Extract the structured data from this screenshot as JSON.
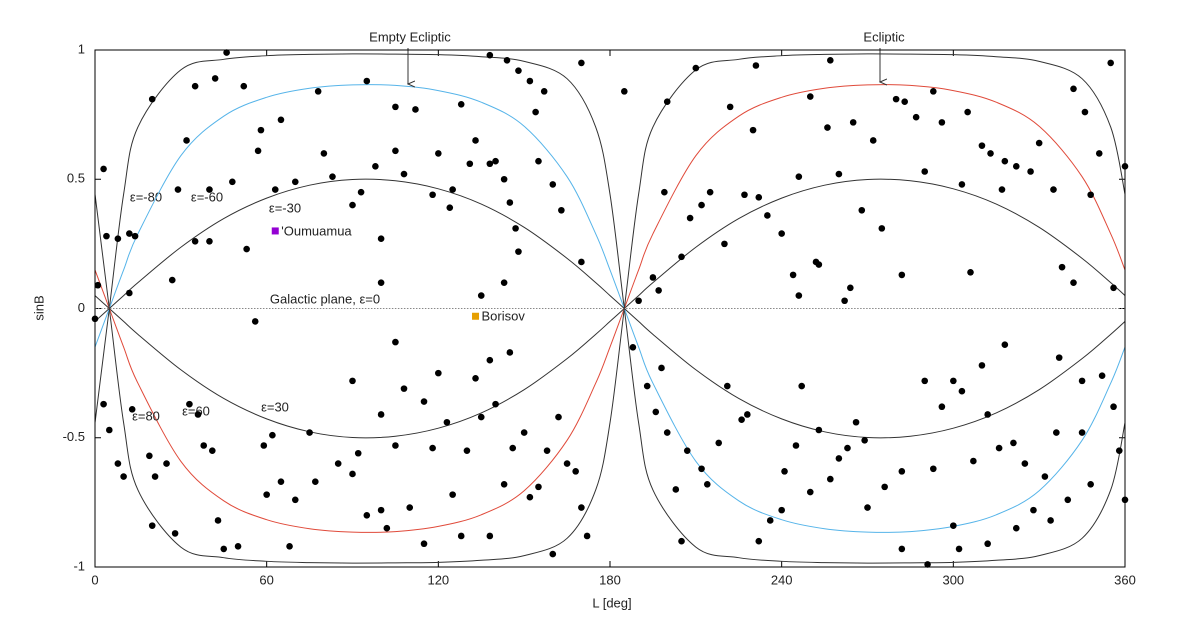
{
  "chart_data": {
    "type": "scatter",
    "xlabel": "L [deg]",
    "ylabel": "sinB",
    "xlim": [
      0,
      360
    ],
    "xticks": [
      0,
      60,
      120,
      180,
      240,
      300,
      360
    ],
    "ylim": [
      -1,
      1
    ],
    "yticks": [
      -1,
      -0.5,
      0,
      0.5,
      1
    ],
    "annotations": [
      "Empty Ecliptic",
      "Ecliptic"
    ],
    "series": [
      {
        "name": "ε=-80",
        "color": "#333333",
        "style": "line",
        "x": [
          0,
          5,
          10,
          15,
          30,
          45,
          60,
          75,
          90,
          105,
          120,
          135,
          150,
          165,
          175,
          180,
          185,
          190,
          195,
          210,
          225,
          240,
          255,
          270,
          285,
          300,
          315,
          330,
          345,
          355,
          360
        ],
        "values": [
          -0.442,
          0,
          0.442,
          0.702,
          0.923,
          0.964,
          0.978,
          0.983,
          0.985,
          0.984,
          0.982,
          0.974,
          0.956,
          0.889,
          0.702,
          0.442,
          0,
          -0.442,
          -0.702,
          -0.923,
          -0.964,
          -0.978,
          -0.983,
          -0.985,
          -0.984,
          -0.982,
          -0.974,
          -0.956,
          -0.889,
          -0.702,
          -0.442
        ]
      },
      {
        "name": "ε=-60",
        "color": "#56b4e9",
        "style": "line",
        "x": [
          0,
          5,
          10,
          15,
          30,
          45,
          60,
          75,
          90,
          105,
          120,
          135,
          150,
          165,
          175,
          180,
          185,
          190,
          195,
          210,
          225,
          240,
          255,
          270,
          285,
          300,
          315,
          330,
          345,
          355,
          360
        ],
        "values": [
          -0.149,
          0,
          0.149,
          0.289,
          0.591,
          0.744,
          0.817,
          0.852,
          0.865,
          0.863,
          0.843,
          0.798,
          0.705,
          0.51,
          0.289,
          0.149,
          0,
          -0.149,
          -0.289,
          -0.591,
          -0.744,
          -0.817,
          -0.852,
          -0.865,
          -0.863,
          -0.843,
          -0.798,
          -0.705,
          -0.51,
          -0.289,
          -0.149
        ]
      },
      {
        "name": "ε=-30",
        "color": "#333333",
        "style": "line",
        "x": [
          0,
          5,
          10,
          15,
          30,
          45,
          60,
          75,
          90,
          105,
          120,
          135,
          150,
          165,
          175,
          180,
          185,
          190,
          195,
          210,
          225,
          240,
          255,
          270,
          285,
          300,
          315,
          330,
          345,
          355,
          360
        ],
        "values": [
          -0.05,
          0,
          0.05,
          0.1,
          0.237,
          0.348,
          0.427,
          0.477,
          0.499,
          0.494,
          0.463,
          0.404,
          0.314,
          0.194,
          0.1,
          0.05,
          0,
          -0.05,
          -0.1,
          -0.237,
          -0.348,
          -0.427,
          -0.477,
          -0.499,
          -0.494,
          -0.463,
          -0.404,
          -0.314,
          -0.194,
          -0.1,
          -0.05
        ]
      },
      {
        "name": "Galactic plane, ε=0",
        "color": "#888888",
        "style": "dotted",
        "x": [
          0,
          360
        ],
        "values": [
          0,
          0
        ]
      },
      {
        "name": "ε=30",
        "color": "#333333",
        "style": "line",
        "x": [
          0,
          5,
          10,
          15,
          30,
          45,
          60,
          75,
          90,
          105,
          120,
          135,
          150,
          165,
          175,
          180,
          185,
          190,
          195,
          210,
          225,
          240,
          255,
          270,
          285,
          300,
          315,
          330,
          345,
          355,
          360
        ],
        "values": [
          0.05,
          0,
          -0.05,
          -0.1,
          -0.237,
          -0.348,
          -0.427,
          -0.477,
          -0.499,
          -0.494,
          -0.463,
          -0.404,
          -0.314,
          -0.194,
          -0.1,
          -0.05,
          0,
          0.05,
          0.1,
          0.237,
          0.348,
          0.427,
          0.477,
          0.499,
          0.494,
          0.463,
          0.404,
          0.314,
          0.194,
          0.1,
          0.05
        ]
      },
      {
        "name": "ε=60",
        "color": "#e04a3a",
        "style": "line",
        "x": [
          0,
          5,
          10,
          15,
          30,
          45,
          60,
          75,
          90,
          105,
          120,
          135,
          150,
          165,
          175,
          180,
          185,
          190,
          195,
          210,
          225,
          240,
          255,
          270,
          285,
          300,
          315,
          330,
          345,
          355,
          360
        ],
        "values": [
          0.149,
          0,
          -0.149,
          -0.289,
          -0.591,
          -0.744,
          -0.817,
          -0.852,
          -0.865,
          -0.863,
          -0.843,
          -0.798,
          -0.705,
          -0.51,
          -0.289,
          -0.149,
          0,
          0.149,
          0.289,
          0.591,
          0.744,
          0.817,
          0.852,
          0.865,
          0.863,
          0.843,
          0.798,
          0.705,
          0.51,
          0.289,
          0.149
        ]
      },
      {
        "name": "ε=80",
        "color": "#333333",
        "style": "line",
        "x": [
          0,
          5,
          10,
          15,
          30,
          45,
          60,
          75,
          90,
          105,
          120,
          135,
          150,
          165,
          175,
          180,
          185,
          190,
          195,
          210,
          225,
          240,
          255,
          270,
          285,
          300,
          315,
          330,
          345,
          355,
          360
        ],
        "values": [
          0.442,
          0,
          -0.442,
          -0.702,
          -0.923,
          -0.964,
          -0.978,
          -0.983,
          -0.985,
          -0.984,
          -0.982,
          -0.974,
          -0.956,
          -0.889,
          -0.702,
          -0.442,
          0,
          0.442,
          0.702,
          0.923,
          0.964,
          0.978,
          0.983,
          0.985,
          0.984,
          0.982,
          0.974,
          0.956,
          0.889,
          0.702,
          0.442
        ]
      },
      {
        "color": "#000000",
        "style": "points",
        "x": [
          46,
          42,
          35,
          52,
          20,
          58,
          65,
          78,
          95,
          105,
          112,
          128,
          138,
          144,
          148,
          152,
          157,
          170,
          154,
          32,
          57,
          48,
          40,
          29,
          63,
          70,
          80,
          83,
          90,
          93,
          98,
          100,
          105,
          108,
          118,
          120,
          125,
          124,
          131,
          133,
          138,
          140,
          143,
          145,
          147,
          148,
          155,
          160,
          163,
          170,
          12,
          14,
          4,
          40,
          35,
          8,
          1,
          3,
          27,
          53,
          100,
          135,
          143,
          12,
          0,
          3,
          5,
          8,
          10,
          13,
          19,
          21,
          25,
          20,
          28,
          33,
          36,
          38,
          41,
          43,
          45,
          50,
          56,
          59,
          62,
          60,
          65,
          68,
          70,
          75,
          77,
          85,
          90,
          92,
          95,
          100,
          102,
          105,
          108,
          110,
          115,
          118,
          120,
          123,
          125,
          128,
          130,
          133,
          135,
          140,
          143,
          146,
          150,
          152,
          155,
          158,
          162,
          165,
          168,
          170,
          172,
          105,
          100,
          115,
          138,
          145,
          90,
          160,
          138,
          190,
          195,
          197,
          205,
          208,
          212,
          215,
          210,
          222,
          230,
          232,
          235,
          240,
          244,
          246,
          250,
          252,
          256,
          260,
          265,
          268,
          272,
          275,
          280,
          283,
          287,
          290,
          293,
          296,
          303,
          305,
          310,
          313,
          318,
          322,
          327,
          335,
          342,
          346,
          348,
          351,
          355,
          360,
          246,
          262,
          282,
          306,
          317,
          330,
          220,
          227,
          199,
          257,
          231,
          253,
          264,
          342,
          356,
          338,
          200,
          185,
          188,
          193,
          196,
          200,
          203,
          207,
          212,
          218,
          221,
          226,
          232,
          236,
          241,
          247,
          250,
          253,
          257,
          260,
          263,
          266,
          269,
          276,
          282,
          290,
          293,
          296,
          303,
          307,
          312,
          316,
          321,
          325,
          328,
          332,
          336,
          340,
          345,
          348,
          352,
          356,
          360,
          358,
          282,
          291,
          302,
          312,
          322,
          337,
          345,
          318,
          300,
          310,
          240,
          228,
          205,
          198,
          214,
          245,
          270,
          334,
          300
        ],
        "values": [
          0.99,
          0.89,
          0.86,
          0.86,
          0.81,
          0.69,
          0.73,
          0.84,
          0.88,
          0.78,
          0.77,
          0.79,
          0.98,
          0.96,
          0.92,
          0.88,
          0.84,
          0.95,
          0.76,
          0.65,
          0.61,
          0.49,
          0.46,
          0.46,
          0.46,
          0.49,
          0.6,
          0.51,
          0.4,
          0.45,
          0.55,
          0.27,
          0.61,
          0.52,
          0.44,
          0.6,
          0.46,
          0.39,
          0.56,
          0.65,
          0.56,
          0.57,
          0.5,
          0.41,
          0.31,
          0.22,
          0.57,
          0.48,
          0.38,
          0.18,
          0.29,
          0.28,
          0.28,
          0.26,
          0.26,
          0.27,
          0.09,
          0.54,
          0.11,
          0.23,
          0.1,
          0.05,
          0.1,
          0.06,
          -0.04,
          -0.37,
          -0.47,
          -0.6,
          -0.65,
          -0.39,
          -0.57,
          -0.65,
          -0.6,
          -0.84,
          -0.87,
          -0.37,
          -0.41,
          -0.53,
          -0.55,
          -0.82,
          -0.93,
          -0.92,
          -0.05,
          -0.53,
          -0.49,
          -0.72,
          -0.67,
          -0.92,
          -0.74,
          -0.48,
          -0.67,
          -0.6,
          -0.28,
          -0.56,
          -0.8,
          -0.78,
          -0.85,
          -0.53,
          -0.31,
          -0.77,
          -0.91,
          -0.54,
          -0.25,
          -0.44,
          -0.72,
          -0.88,
          -0.55,
          -0.27,
          -0.42,
          -0.37,
          -0.68,
          -0.54,
          -0.48,
          -0.73,
          -0.69,
          -0.55,
          -0.42,
          -0.6,
          -0.63,
          -0.77,
          -0.88,
          -0.13,
          -0.41,
          -0.36,
          -0.2,
          -0.17,
          -0.64,
          -0.95,
          -0.88,
          0.03,
          0.12,
          0.07,
          0.2,
          0.35,
          0.4,
          0.45,
          0.93,
          0.78,
          0.69,
          0.43,
          0.36,
          0.29,
          0.13,
          0.51,
          0.82,
          0.18,
          0.7,
          0.52,
          0.72,
          0.38,
          0.65,
          0.31,
          0.81,
          0.8,
          0.74,
          0.53,
          0.84,
          0.72,
          0.48,
          0.76,
          0.63,
          0.6,
          0.57,
          0.55,
          0.53,
          0.46,
          0.85,
          0.76,
          0.44,
          0.6,
          0.95,
          0.55,
          0.05,
          0.03,
          0.13,
          0.14,
          0.46,
          0.64,
          0.25,
          0.44,
          0.45,
          0.96,
          0.94,
          0.17,
          0.08,
          0.1,
          0.08,
          0.16,
          0.8,
          0.84,
          -0.15,
          -0.3,
          -0.4,
          -0.48,
          -0.7,
          -0.55,
          -0.62,
          -0.52,
          -0.3,
          -0.43,
          -0.9,
          -0.82,
          -0.63,
          -0.3,
          -0.71,
          -0.47,
          -0.66,
          -0.58,
          -0.54,
          -0.44,
          -0.51,
          -0.69,
          -0.63,
          -0.28,
          -0.62,
          -0.38,
          -0.32,
          -0.59,
          -0.41,
          -0.54,
          -0.52,
          -0.6,
          -0.78,
          -0.65,
          -0.48,
          -0.74,
          -0.48,
          -0.68,
          -0.26,
          -0.38,
          -0.74,
          -0.55,
          -0.93,
          -0.99,
          -0.93,
          -0.91,
          -0.85,
          -0.19,
          -0.28,
          -0.14,
          -0.28,
          -0.22,
          -0.78,
          -0.41,
          -0.9,
          -0.23,
          -0.68,
          -0.53,
          -0.77,
          -0.82,
          -0.84
        ]
      },
      {
        "name": "'Oumuamua",
        "color": "#9400d3",
        "style": "square",
        "x": [
          63
        ],
        "values": [
          0.3
        ]
      },
      {
        "name": "Borisov",
        "color": "#e69f00",
        "style": "square",
        "x": [
          133
        ],
        "values": [
          -0.03
        ]
      }
    ]
  }
}
